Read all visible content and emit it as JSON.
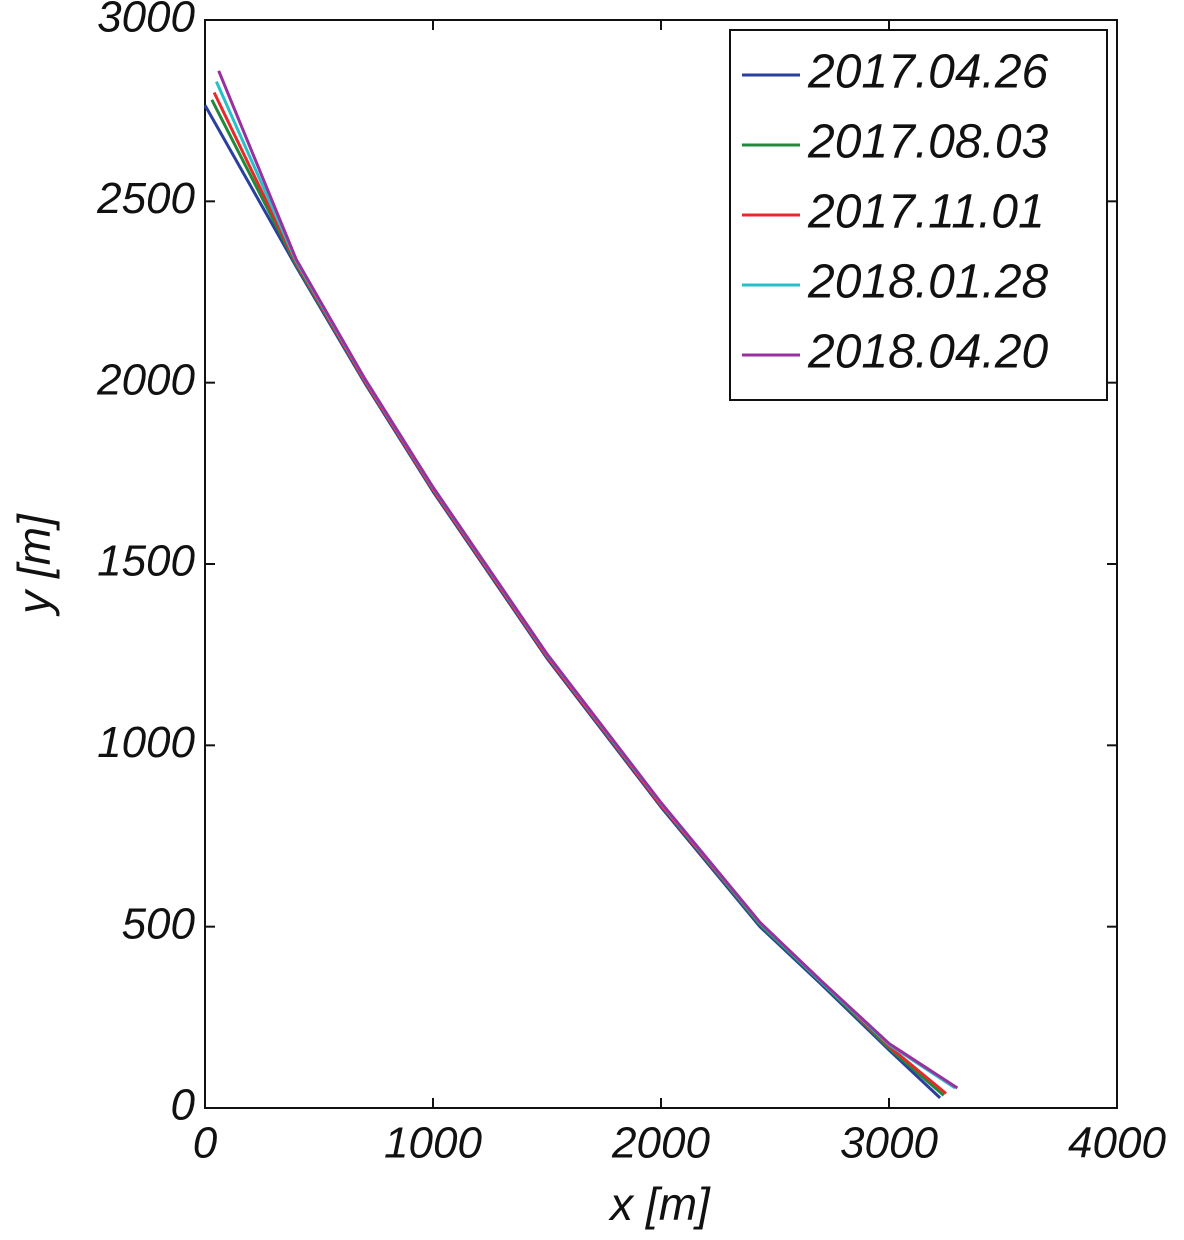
{
  "chart_data": {
    "type": "line",
    "xlabel": "x [m]",
    "ylabel": "y [m]",
    "xlim": [
      0,
      4000
    ],
    "ylim": [
      0,
      3000
    ],
    "xticks": [
      0,
      1000,
      2000,
      3000,
      4000
    ],
    "yticks": [
      0,
      500,
      1000,
      1500,
      2000,
      2500,
      3000
    ],
    "grid": false,
    "legend": "upper right",
    "series": [
      {
        "name": "2017.04.26",
        "color": "#2b3f9e",
        "x": [
          0,
          400,
          700,
          1000,
          1500,
          2000,
          2434,
          2700,
          3000,
          3224
        ],
        "values": [
          2765,
          2320,
          2000,
          1700,
          1240,
          830,
          500,
          343,
          160,
          28
        ]
      },
      {
        "name": "2017.08.03",
        "color": "#1f8a3a",
        "x": [
          30,
          400,
          700,
          1000,
          1500,
          2000,
          2434,
          2700,
          3000,
          3240
        ],
        "values": [
          2780,
          2325,
          2005,
          1705,
          1245,
          835,
          505,
          348,
          165,
          35
        ]
      },
      {
        "name": "2017.11.01",
        "color": "#e8282a",
        "x": [
          40,
          400,
          700,
          1000,
          1500,
          2000,
          2434,
          2700,
          3000,
          3250
        ],
        "values": [
          2800,
          2330,
          2005,
          1705,
          1245,
          835,
          510,
          352,
          170,
          40
        ]
      },
      {
        "name": "2018.01.28",
        "color": "#27c0c8",
        "x": [
          50,
          400,
          700,
          1000,
          1500,
          2000,
          2434,
          2700,
          3000,
          3290
        ],
        "values": [
          2830,
          2335,
          2010,
          1710,
          1250,
          840,
          510,
          350,
          175,
          55
        ]
      },
      {
        "name": "2018.04.20",
        "color": "#9a2fa0",
        "x": [
          60,
          400,
          700,
          1000,
          1500,
          2000,
          2434,
          2700,
          3000,
          3300
        ],
        "values": [
          2860,
          2340,
          2012,
          1712,
          1252,
          842,
          512,
          352,
          178,
          55
        ]
      }
    ]
  }
}
